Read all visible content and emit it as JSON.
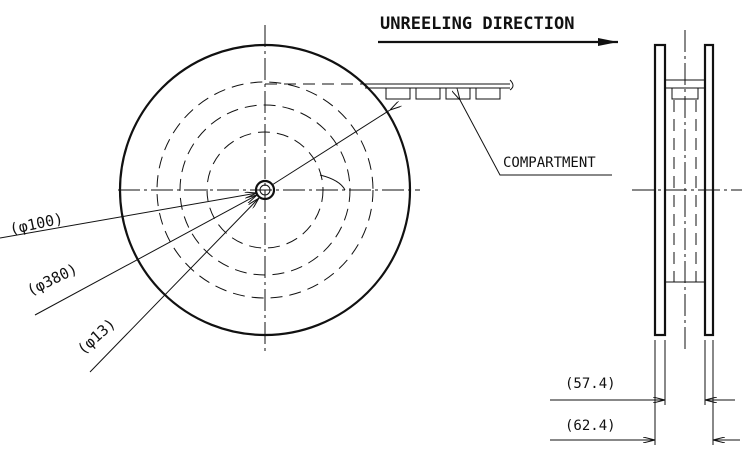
{
  "header": {
    "direction": "UNREELING DIRECTION"
  },
  "labels": {
    "compartment": "COMPARTMENT",
    "hub_diameter": "(φ100)",
    "reel_diameter": "(φ380)",
    "arbor_hole": "(φ13)",
    "inner_width": "(57.4)",
    "outer_width": "(62.4)"
  }
}
